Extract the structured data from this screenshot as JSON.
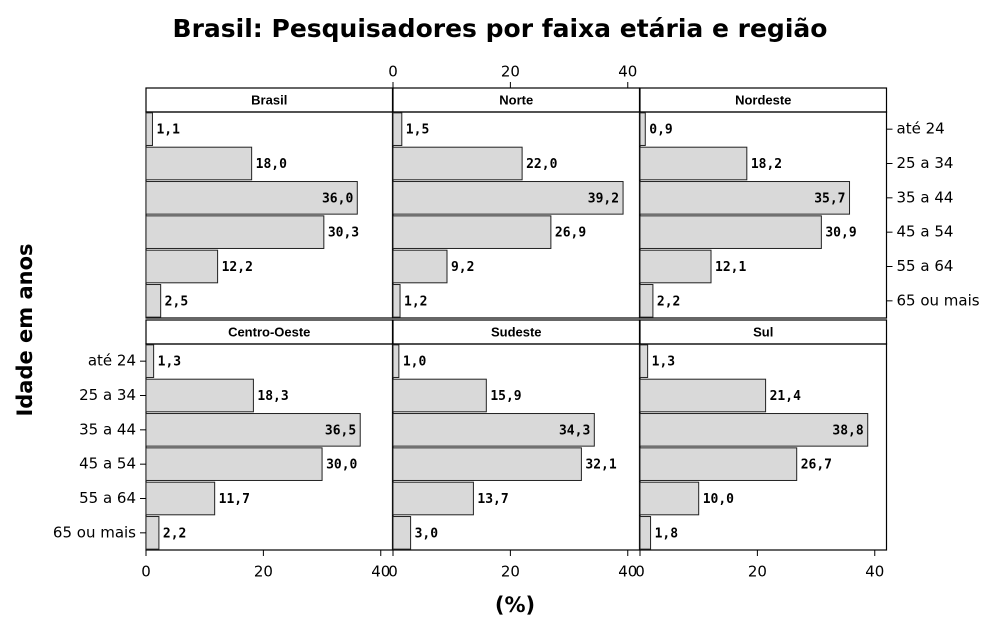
{
  "chart_data": {
    "type": "bar",
    "orientation": "horizontal",
    "title": "Brasil: Pesquisadores por faixa etária e região",
    "ylabel": "Idade em anos",
    "xlabel": "(%)",
    "categories": [
      "até 24",
      "25 a 34",
      "35 a 44",
      "45 a 54",
      "55 a 64",
      "65 ou mais"
    ],
    "xlim": [
      0,
      42
    ],
    "xticks": [
      0,
      20,
      40
    ],
    "color": "#d9d9d9",
    "panels": [
      {
        "name": "Brasil",
        "values": [
          1.1,
          18.0,
          36.0,
          30.3,
          12.2,
          2.5
        ],
        "value_labels": [
          "1,1",
          "18,0",
          "36,0",
          "30,3",
          "12,2",
          "2,5"
        ]
      },
      {
        "name": "Norte",
        "values": [
          1.5,
          22.0,
          39.2,
          26.9,
          9.2,
          1.2
        ],
        "value_labels": [
          "1,5",
          "22,0",
          "39,2",
          "26,9",
          "9,2",
          "1,2"
        ]
      },
      {
        "name": "Nordeste",
        "values": [
          0.9,
          18.2,
          35.7,
          30.9,
          12.1,
          2.2
        ],
        "value_labels": [
          "0,9",
          "18,2",
          "35,7",
          "30,9",
          "12,1",
          "2,2"
        ]
      },
      {
        "name": "Centro-Oeste",
        "values": [
          1.3,
          18.3,
          36.5,
          30.0,
          11.7,
          2.2
        ],
        "value_labels": [
          "1,3",
          "18,3",
          "36,5",
          "30,0",
          "11,7",
          "2,2"
        ]
      },
      {
        "name": "Sudeste",
        "values": [
          1.0,
          15.9,
          34.3,
          32.1,
          13.7,
          3.0
        ],
        "value_labels": [
          "1,0",
          "15,9",
          "34,3",
          "32,1",
          "13,7",
          "3,0"
        ]
      },
      {
        "name": "Sul",
        "values": [
          1.3,
          21.4,
          38.8,
          26.7,
          10.0,
          1.8
        ],
        "value_labels": [
          "1,3",
          "21,4",
          "38,8",
          "26,7",
          "10,0",
          "1,8"
        ]
      }
    ]
  }
}
